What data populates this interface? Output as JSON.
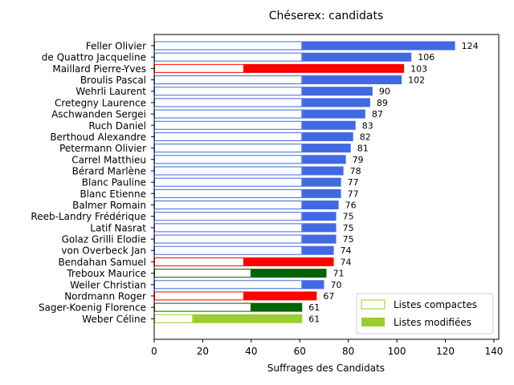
{
  "chart_data": {
    "type": "bar",
    "orientation": "horizontal",
    "stacked": true,
    "title": "Chéserex: candidats",
    "xlabel": "Suffrages des Candidats",
    "ylabel": "",
    "xlim": [
      0,
      142
    ],
    "xticks": [
      0,
      20,
      40,
      60,
      80,
      100,
      120,
      140
    ],
    "grid": false,
    "legend_position": "lower-right",
    "legend": [
      {
        "name": "Listes compactes",
        "style": "outline",
        "color": "#9acd32"
      },
      {
        "name": "Listes modifiées",
        "style": "filled",
        "color": "#9acd32"
      }
    ],
    "candidates": [
      {
        "name": "Feller Olivier",
        "compact": 61,
        "total": 124,
        "color": "#4169e1"
      },
      {
        "name": "de Quattro Jacqueline",
        "compact": 61,
        "total": 106,
        "color": "#4169e1"
      },
      {
        "name": "Maillard Pierre-Yves",
        "compact": 37,
        "total": 103,
        "color": "#ff0000"
      },
      {
        "name": "Broulis Pascal",
        "compact": 61,
        "total": 102,
        "color": "#4169e1"
      },
      {
        "name": "Wehrli Laurent",
        "compact": 61,
        "total": 90,
        "color": "#4169e1"
      },
      {
        "name": "Cretegny Laurence",
        "compact": 61,
        "total": 89,
        "color": "#4169e1"
      },
      {
        "name": "Aschwanden Sergei",
        "compact": 61,
        "total": 87,
        "color": "#4169e1"
      },
      {
        "name": "Ruch Daniel",
        "compact": 61,
        "total": 83,
        "color": "#4169e1"
      },
      {
        "name": "Berthoud Alexandre",
        "compact": 61,
        "total": 82,
        "color": "#4169e1"
      },
      {
        "name": "Petermann Olivier",
        "compact": 61,
        "total": 81,
        "color": "#4169e1"
      },
      {
        "name": "Carrel Matthieu",
        "compact": 61,
        "total": 79,
        "color": "#4169e1"
      },
      {
        "name": "Bérard Marlène",
        "compact": 61,
        "total": 78,
        "color": "#4169e1"
      },
      {
        "name": "Blanc Pauline",
        "compact": 61,
        "total": 77,
        "color": "#4169e1"
      },
      {
        "name": "Blanc Etienne",
        "compact": 61,
        "total": 77,
        "color": "#4169e1"
      },
      {
        "name": "Balmer Romain",
        "compact": 61,
        "total": 76,
        "color": "#4169e1"
      },
      {
        "name": "Reeb-Landry Frédérique",
        "compact": 61,
        "total": 75,
        "color": "#4169e1"
      },
      {
        "name": "Latif Nasrat",
        "compact": 61,
        "total": 75,
        "color": "#4169e1"
      },
      {
        "name": "Golaz Grilli Elodie",
        "compact": 61,
        "total": 75,
        "color": "#4169e1"
      },
      {
        "name": "von Overbeck Jan",
        "compact": 61,
        "total": 74,
        "color": "#4169e1"
      },
      {
        "name": "Bendahan Samuel",
        "compact": 37,
        "total": 74,
        "color": "#ff0000"
      },
      {
        "name": "Treboux Maurice",
        "compact": 40,
        "total": 71,
        "color": "#006400"
      },
      {
        "name": "Weiler Christian",
        "compact": 61,
        "total": 70,
        "color": "#4169e1"
      },
      {
        "name": "Nordmann Roger",
        "compact": 37,
        "total": 67,
        "color": "#ff0000"
      },
      {
        "name": "Sager-Koenig Florence",
        "compact": 40,
        "total": 61,
        "color": "#006400"
      },
      {
        "name": "Weber Céline",
        "compact": 16,
        "total": 61,
        "color": "#9acd32"
      }
    ]
  }
}
